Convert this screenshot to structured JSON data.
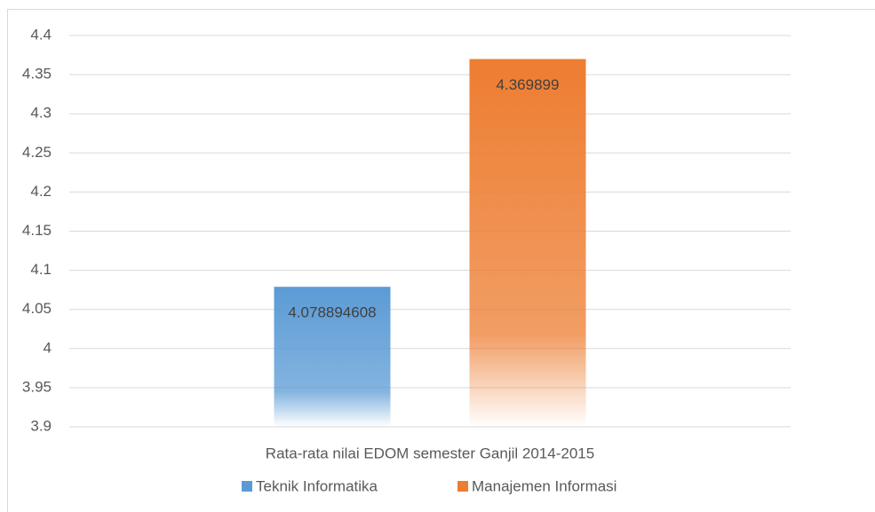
{
  "chart_data": {
    "type": "bar",
    "categories": [
      "Rata-rata nilai EDOM semester Ganjil 2014-2015"
    ],
    "series": [
      {
        "name": "Teknik Informatika",
        "color": "#5b9bd5",
        "values": [
          4.078894608
        ]
      },
      {
        "name": "Manajemen Informasi",
        "color": "#ed7d31",
        "values": [
          4.369899
        ]
      }
    ],
    "ylim": [
      3.9,
      4.4
    ],
    "yticks": [
      3.9,
      3.95,
      4,
      4.05,
      4.1,
      4.15,
      4.2,
      4.25,
      4.3,
      4.35,
      4.4
    ],
    "grid": true,
    "legend": "bottom"
  }
}
